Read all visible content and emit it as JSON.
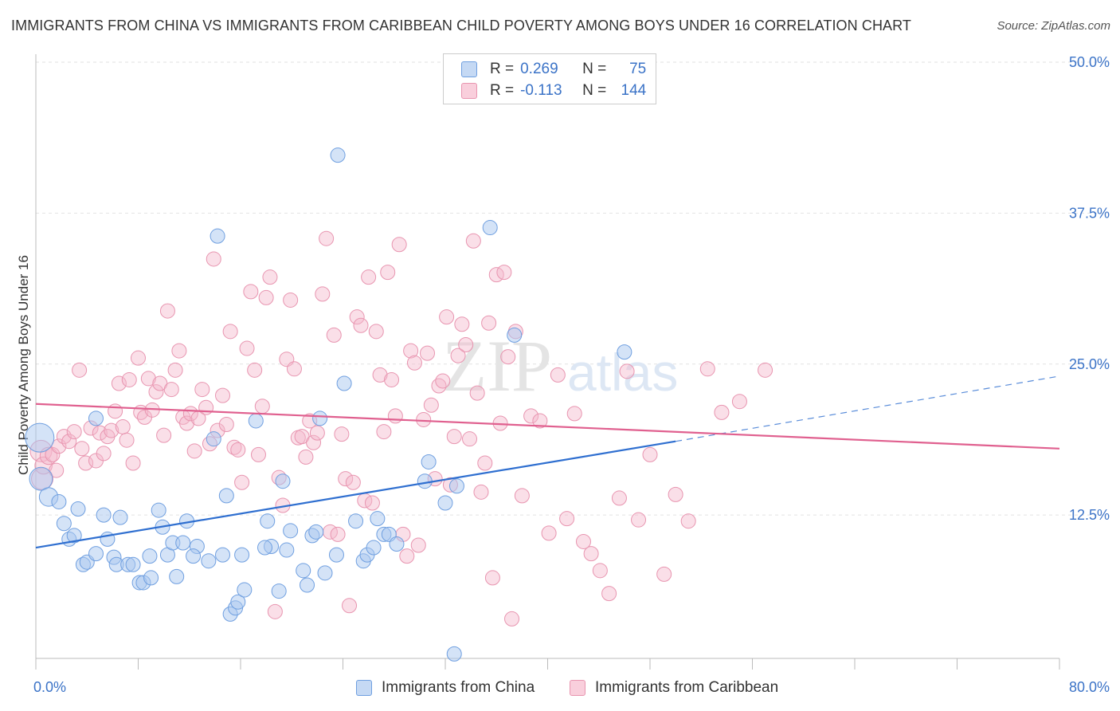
{
  "header": {
    "title": "IMMIGRANTS FROM CHINA VS IMMIGRANTS FROM CARIBBEAN CHILD POVERTY AMONG BOYS UNDER 16 CORRELATION CHART",
    "source": "Source: ZipAtlas.com"
  },
  "legend_stats": {
    "r_label": "R =",
    "n_label": "N =",
    "rows": [
      {
        "r": "0.269",
        "n": "75",
        "color": "#a9c8f0"
      },
      {
        "r": "-0.113",
        "n": "144",
        "color": "#f5b8cb"
      }
    ]
  },
  "bottom_legend": [
    {
      "label": "Immigrants from China",
      "color": "#a9c8f0"
    },
    {
      "label": "Immigrants from Caribbean",
      "color": "#f5b8cb"
    }
  ],
  "colors": {
    "china_fill": "#a9c8f0",
    "china_stroke": "#6f9fe0",
    "china_line": "#2f6fd0",
    "carib_fill": "#f5b8cb",
    "carib_stroke": "#e895b0",
    "carib_line": "#e0608f",
    "tick_text": "#3b73c7",
    "watermark": "#e6e6e6"
  },
  "watermark": {
    "zip": "ZIP",
    "atlas": "atlas"
  },
  "chart_data": {
    "type": "scatter",
    "title": "IMMIGRANTS FROM CHINA VS IMMIGRANTS FROM CARIBBEAN CHILD POVERTY AMONG BOYS UNDER 16 CORRELATION CHART",
    "xlabel": "",
    "ylabel": "Child Poverty Among Boys Under 16",
    "xlim": [
      0,
      80
    ],
    "ylim": [
      0,
      52
    ],
    "x_tick_labels": [
      "0.0%",
      "80.0%"
    ],
    "y_ticks": [
      12.5,
      25.0,
      37.5,
      50.0
    ],
    "y_tick_labels": [
      "12.5%",
      "25.0%",
      "37.5%",
      "50.0%"
    ],
    "grid": true,
    "legend_position": "top-center",
    "series": [
      {
        "name": "Immigrants from China",
        "r": 0.269,
        "n": 75,
        "trend": {
          "x0": 0,
          "y0": 9.8,
          "x1": 50,
          "y1": 18.6,
          "dashed_to_x": 80,
          "dashed_to_y": 24.0
        },
        "points": [
          [
            0.3,
            18.9,
            2
          ],
          [
            0.4,
            15.5,
            1.6
          ],
          [
            1,
            14,
            1.3
          ],
          [
            1.8,
            13.6,
            1
          ],
          [
            2.2,
            11.8,
            1
          ],
          [
            2.6,
            10.5,
            1
          ],
          [
            3,
            10.8,
            1
          ],
          [
            3.3,
            13.0,
            1
          ],
          [
            3.7,
            8.4,
            1
          ],
          [
            4.0,
            8.6,
            1
          ],
          [
            4.7,
            9.3,
            1
          ],
          [
            4.7,
            20.5,
            1
          ],
          [
            5.3,
            12.5,
            1
          ],
          [
            5.6,
            10.5,
            1
          ],
          [
            6.1,
            9.0,
            1
          ],
          [
            6.3,
            8.4,
            1
          ],
          [
            6.6,
            12.3,
            1
          ],
          [
            7.2,
            8.4,
            1
          ],
          [
            7.6,
            8.4,
            1
          ],
          [
            8.1,
            6.9,
            1
          ],
          [
            8.4,
            6.9,
            1
          ],
          [
            8.9,
            9.1,
            1
          ],
          [
            9.0,
            7.3,
            1
          ],
          [
            9.6,
            12.9,
            1
          ],
          [
            9.9,
            11.5,
            1
          ],
          [
            10.3,
            9.2,
            1
          ],
          [
            10.7,
            10.2,
            1
          ],
          [
            11.0,
            7.4,
            1
          ],
          [
            11.5,
            10.2,
            1
          ],
          [
            11.8,
            12.0,
            1
          ],
          [
            12.6,
            9.9,
            1
          ],
          [
            13.5,
            8.7,
            1
          ],
          [
            13.9,
            18.8,
            1
          ],
          [
            14.2,
            35.6,
            1
          ],
          [
            14.6,
            9.2,
            1
          ],
          [
            14.9,
            14.1,
            1
          ],
          [
            15.2,
            4.3,
            1
          ],
          [
            15.6,
            4.8,
            1
          ],
          [
            15.8,
            5.3,
            1
          ],
          [
            16.1,
            9.2,
            1
          ],
          [
            16.3,
            6.3,
            1
          ],
          [
            17.2,
            20.3,
            1
          ],
          [
            18.1,
            12.0,
            1
          ],
          [
            18.4,
            9.9,
            1
          ],
          [
            19.0,
            6.2,
            1
          ],
          [
            19.3,
            15.3,
            1
          ],
          [
            19.6,
            9.6,
            1
          ],
          [
            19.9,
            11.2,
            1
          ],
          [
            20.9,
            7.9,
            1
          ],
          [
            21.2,
            6.7,
            1
          ],
          [
            21.6,
            10.8,
            1
          ],
          [
            21.9,
            11.1,
            1
          ],
          [
            22.2,
            20.5,
            1
          ],
          [
            22.6,
            7.7,
            1
          ],
          [
            23.6,
            42.3,
            1
          ],
          [
            24.1,
            23.4,
            1
          ],
          [
            25.0,
            12.0,
            1
          ],
          [
            25.6,
            8.7,
            1
          ],
          [
            25.9,
            9.2,
            1
          ],
          [
            26.4,
            9.8,
            1
          ],
          [
            26.7,
            12.2,
            1
          ],
          [
            27.2,
            10.9,
            1
          ],
          [
            27.6,
            10.9,
            1
          ],
          [
            28.2,
            10.1,
            1
          ],
          [
            30.4,
            15.3,
            1
          ],
          [
            30.7,
            16.9,
            1
          ],
          [
            32.0,
            13.5,
            1
          ],
          [
            32.7,
            1.0,
            1
          ],
          [
            32.9,
            14.9,
            1
          ],
          [
            35.5,
            36.3,
            1
          ],
          [
            37.4,
            27.4,
            1
          ],
          [
            46.0,
            26.0,
            1
          ],
          [
            23.5,
            9.2,
            1
          ],
          [
            12.3,
            9.1,
            1
          ],
          [
            17.9,
            9.8,
            1
          ]
        ]
      },
      {
        "name": "Immigrants from Caribbean",
        "r": -0.113,
        "n": 144,
        "trend": {
          "x0": 0,
          "y0": 21.7,
          "x1": 80,
          "y1": 18.0
        },
        "points": [
          [
            0.4,
            17.8,
            1.5
          ],
          [
            0.5,
            15.5,
            1.5
          ],
          [
            0.6,
            16.6,
            1.2
          ],
          [
            1.0,
            17.4,
            1.2
          ],
          [
            1.3,
            17.5,
            1
          ],
          [
            1.6,
            16.2,
            1
          ],
          [
            1.8,
            18.2,
            1
          ],
          [
            2.2,
            19.0,
            1
          ],
          [
            2.6,
            18.6,
            1
          ],
          [
            3.0,
            19.4,
            1
          ],
          [
            3.4,
            24.5,
            1
          ],
          [
            3.6,
            18.0,
            1
          ],
          [
            3.9,
            16.8,
            1
          ],
          [
            4.3,
            19.7,
            1
          ],
          [
            4.7,
            17.0,
            1
          ],
          [
            5.0,
            19.3,
            1
          ],
          [
            5.3,
            17.6,
            1
          ],
          [
            5.6,
            19.0,
            1
          ],
          [
            5.9,
            19.5,
            1
          ],
          [
            6.2,
            21.1,
            1
          ],
          [
            6.5,
            23.4,
            1
          ],
          [
            6.8,
            19.8,
            1
          ],
          [
            7.1,
            18.7,
            1
          ],
          [
            7.3,
            23.7,
            1
          ],
          [
            7.6,
            16.8,
            1
          ],
          [
            8.0,
            25.5,
            1
          ],
          [
            8.2,
            21.0,
            1
          ],
          [
            8.5,
            20.6,
            1
          ],
          [
            8.8,
            23.8,
            1
          ],
          [
            9.1,
            21.2,
            1
          ],
          [
            9.4,
            22.7,
            1
          ],
          [
            9.7,
            23.4,
            1
          ],
          [
            10.0,
            19.1,
            1
          ],
          [
            10.3,
            29.4,
            1
          ],
          [
            10.6,
            22.9,
            1
          ],
          [
            10.9,
            24.5,
            1
          ],
          [
            11.2,
            26.1,
            1
          ],
          [
            11.5,
            20.6,
            1
          ],
          [
            11.8,
            20.1,
            1
          ],
          [
            12.1,
            20.9,
            1
          ],
          [
            12.4,
            17.8,
            1
          ],
          [
            12.7,
            20.5,
            1
          ],
          [
            13.0,
            22.9,
            1
          ],
          [
            13.3,
            21.4,
            1
          ],
          [
            13.6,
            18.4,
            1
          ],
          [
            13.9,
            33.7,
            1
          ],
          [
            14.2,
            19.5,
            1
          ],
          [
            14.6,
            22.4,
            1
          ],
          [
            14.9,
            20.0,
            1
          ],
          [
            15.2,
            27.7,
            1
          ],
          [
            15.5,
            18.1,
            1
          ],
          [
            15.8,
            17.9,
            1
          ],
          [
            16.1,
            15.2,
            1
          ],
          [
            16.5,
            26.3,
            1
          ],
          [
            16.8,
            31.0,
            1
          ],
          [
            17.1,
            24.5,
            1
          ],
          [
            17.4,
            17.5,
            1
          ],
          [
            17.7,
            21.5,
            1
          ],
          [
            18.0,
            30.5,
            1
          ],
          [
            18.3,
            32.2,
            1
          ],
          [
            18.7,
            4.5,
            1
          ],
          [
            19.0,
            15.6,
            1
          ],
          [
            19.3,
            13.3,
            1
          ],
          [
            19.6,
            25.4,
            1
          ],
          [
            19.9,
            30.3,
            1
          ],
          [
            20.2,
            24.6,
            1
          ],
          [
            20.5,
            18.9,
            1
          ],
          [
            20.8,
            19.0,
            1
          ],
          [
            21.1,
            17.3,
            1
          ],
          [
            21.4,
            20.3,
            1
          ],
          [
            21.7,
            18.5,
            1
          ],
          [
            22.0,
            19.3,
            1
          ],
          [
            22.4,
            30.8,
            1
          ],
          [
            22.7,
            35.4,
            1
          ],
          [
            23.0,
            11.1,
            1
          ],
          [
            23.3,
            27.4,
            1
          ],
          [
            23.6,
            10.9,
            1
          ],
          [
            23.9,
            19.2,
            1
          ],
          [
            24.2,
            15.5,
            1
          ],
          [
            24.5,
            5.0,
            1
          ],
          [
            24.8,
            15.2,
            1
          ],
          [
            25.1,
            28.9,
            1
          ],
          [
            25.4,
            28.2,
            1
          ],
          [
            25.7,
            13.7,
            1
          ],
          [
            26.0,
            32.2,
            1
          ],
          [
            26.3,
            13.5,
            1
          ],
          [
            26.6,
            27.7,
            1
          ],
          [
            26.9,
            24.1,
            1
          ],
          [
            27.2,
            19.4,
            1
          ],
          [
            27.5,
            32.6,
            1
          ],
          [
            27.8,
            23.7,
            1
          ],
          [
            28.1,
            20.7,
            1
          ],
          [
            28.4,
            34.9,
            1
          ],
          [
            28.7,
            10.9,
            1
          ],
          [
            29.0,
            9.1,
            1
          ],
          [
            29.3,
            26.1,
            1
          ],
          [
            29.6,
            25.1,
            1
          ],
          [
            29.9,
            10.0,
            1
          ],
          [
            30.3,
            20.4,
            1
          ],
          [
            30.6,
            25.9,
            1
          ],
          [
            30.9,
            21.6,
            1
          ],
          [
            31.2,
            15.5,
            1
          ],
          [
            31.5,
            23.2,
            1
          ],
          [
            31.8,
            23.6,
            1
          ],
          [
            32.1,
            28.9,
            1
          ],
          [
            32.4,
            15.0,
            1
          ],
          [
            32.7,
            19.0,
            1
          ],
          [
            33.0,
            25.7,
            1
          ],
          [
            33.3,
            28.3,
            1
          ],
          [
            33.6,
            26.6,
            1
          ],
          [
            33.9,
            18.8,
            1
          ],
          [
            34.2,
            35.2,
            1
          ],
          [
            34.5,
            22.6,
            1
          ],
          [
            34.8,
            14.4,
            1
          ],
          [
            35.1,
            16.8,
            1
          ],
          [
            35.4,
            28.4,
            1
          ],
          [
            35.7,
            7.3,
            1
          ],
          [
            36.0,
            32.4,
            1
          ],
          [
            36.3,
            20.1,
            1
          ],
          [
            36.6,
            32.6,
            1
          ],
          [
            36.9,
            25.6,
            1
          ],
          [
            37.2,
            3.9,
            1
          ],
          [
            37.5,
            27.7,
            1
          ],
          [
            38.0,
            14.1,
            1
          ],
          [
            38.7,
            20.7,
            1
          ],
          [
            39.4,
            20.3,
            1
          ],
          [
            40.1,
            11.0,
            1
          ],
          [
            40.8,
            24.1,
            1
          ],
          [
            41.5,
            12.2,
            1
          ],
          [
            42.1,
            20.9,
            1
          ],
          [
            42.8,
            10.3,
            1
          ],
          [
            43.4,
            9.3,
            1
          ],
          [
            44.1,
            7.9,
            1
          ],
          [
            44.8,
            6.0,
            1
          ],
          [
            45.6,
            13.9,
            1
          ],
          [
            46.2,
            24.4,
            1
          ],
          [
            47.1,
            12.1,
            1
          ],
          [
            48.0,
            17.5,
            1
          ],
          [
            49.1,
            7.6,
            1
          ],
          [
            50.0,
            14.2,
            1
          ],
          [
            51.0,
            12.0,
            1
          ],
          [
            52.5,
            24.6,
            1
          ],
          [
            53.6,
            21.0,
            1
          ],
          [
            55.0,
            21.9,
            1
          ],
          [
            57.0,
            24.5,
            1
          ]
        ]
      }
    ]
  }
}
